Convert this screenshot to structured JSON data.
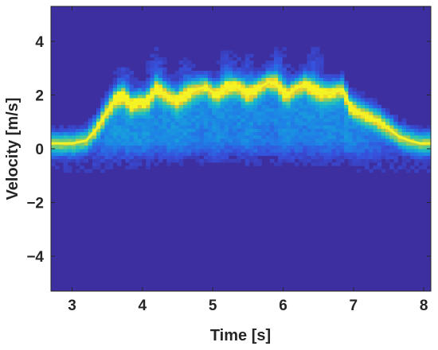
{
  "chart_data": {
    "type": "heatmap",
    "title": "",
    "xlabel": "Time [s]",
    "ylabel": "Velocity [m/s]",
    "xlim": [
      2.7,
      8.1
    ],
    "ylim": [
      -5.3,
      5.3
    ],
    "xticks": [
      3,
      4,
      5,
      6,
      7,
      8
    ],
    "yticks": [
      4,
      2,
      0,
      -2,
      -4
    ],
    "ytick_labels": [
      "4",
      "2",
      "0",
      "−2",
      "−4"
    ],
    "grid": false,
    "legend": "none",
    "colormap": "parula",
    "background_color": "#3d2fa0",
    "overlay_line": {
      "color": "#f2f22a",
      "x": [
        2.7,
        3.0,
        3.2,
        3.35,
        3.5,
        3.62,
        3.72,
        3.85,
        3.95,
        4.05,
        4.2,
        4.35,
        4.5,
        4.6,
        4.75,
        4.9,
        5.05,
        5.2,
        5.35,
        5.5,
        5.65,
        5.8,
        5.9,
        6.05,
        6.15,
        6.3,
        6.4,
        6.55,
        6.7,
        6.85,
        6.95,
        7.05,
        7.2,
        7.35,
        7.5,
        7.65,
        7.8,
        7.95,
        8.1
      ],
      "y": [
        0.2,
        0.2,
        0.3,
        0.75,
        1.4,
        1.85,
        1.95,
        1.6,
        1.75,
        1.7,
        2.2,
        2.0,
        1.75,
        1.95,
        2.2,
        2.3,
        2.0,
        2.25,
        2.3,
        2.0,
        2.25,
        2.5,
        2.4,
        1.95,
        2.2,
        2.4,
        2.2,
        2.05,
        2.1,
        2.2,
        1.6,
        1.4,
        1.2,
        1.05,
        0.75,
        0.45,
        0.3,
        0.2,
        0.2
      ]
    },
    "density_peaks": {
      "t": [
        3.75,
        4.2,
        4.6,
        5.2,
        5.5,
        5.95,
        6.45
      ],
      "v": [
        3.5,
        4.1,
        3.6,
        4.0,
        3.8,
        4.2,
        4.1
      ]
    }
  }
}
